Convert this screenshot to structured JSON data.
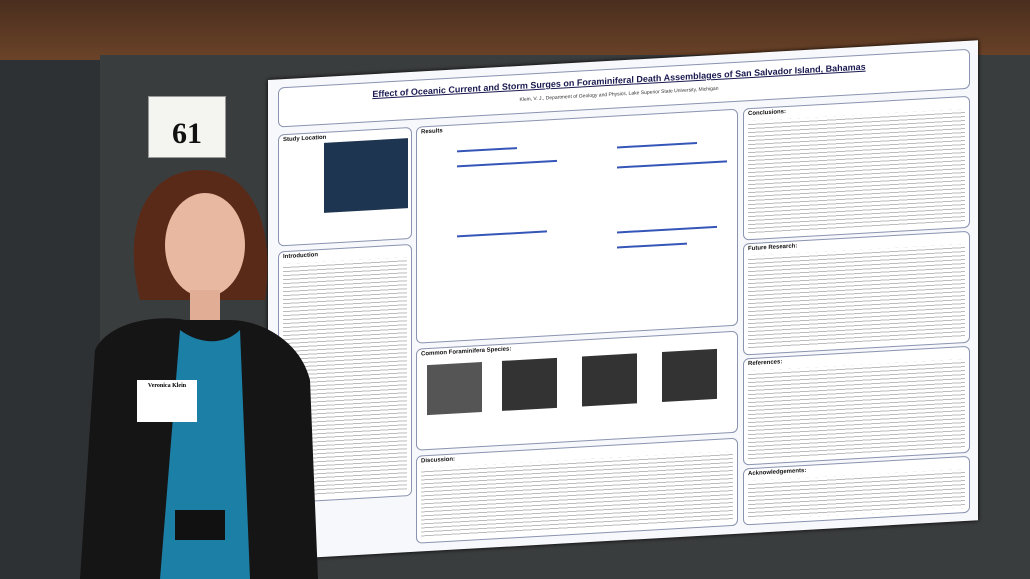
{
  "board_number": "61",
  "name_tag": {
    "name": "Veronica Klein"
  },
  "poster": {
    "title": "Effect of Oceanic Current and Storm Surges on Foraminiferal Death Assemblages of San Salvador Island, Bahamas",
    "author_line": "Klein, V. J., Department of Geology and Physics, Lake Superior State University, Michigan",
    "left_sections": [
      "Study Location",
      "Introduction"
    ],
    "middle_sections": [
      "Results",
      "Common Foraminifera Species:",
      "Discussion:"
    ],
    "right_sections": [
      "Conclusions:",
      "Future Research:",
      "References:",
      "Acknowledgements:"
    ]
  }
}
